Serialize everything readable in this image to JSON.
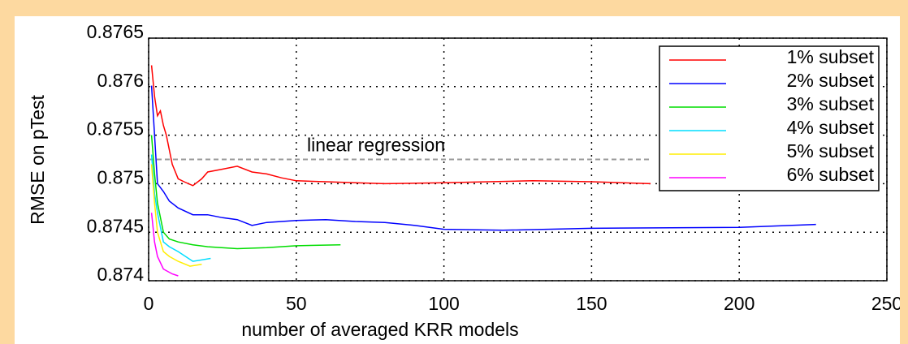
{
  "chart_data": {
    "type": "line",
    "xlabel": "number of averaged KRR models",
    "ylabel": "RMSE on pTest",
    "xlim": [
      0,
      250
    ],
    "xticks": [
      0,
      50,
      100,
      150,
      200,
      250
    ],
    "ylim": [
      0.874,
      0.8765
    ],
    "yticks": [
      0.874,
      0.8745,
      0.875,
      0.8755,
      0.876,
      0.8765
    ],
    "grid": true,
    "legend": "upper right",
    "reference_line": {
      "label": "linear regression",
      "value": 0.87525,
      "x": [
        0,
        170
      ],
      "color": "#999999"
    },
    "series": [
      {
        "name": "1% subset",
        "color": "#ff0000",
        "x": [
          1,
          2,
          3,
          4,
          5,
          6,
          8,
          10,
          12,
          15,
          18,
          20,
          25,
          30,
          35,
          40,
          45,
          50,
          60,
          70,
          80,
          100,
          130,
          150,
          170
        ],
        "values": [
          0.87622,
          0.8759,
          0.8757,
          0.87575,
          0.8756,
          0.8755,
          0.8752,
          0.87505,
          0.87502,
          0.87498,
          0.87505,
          0.87512,
          0.87515,
          0.87518,
          0.87512,
          0.8751,
          0.87506,
          0.87503,
          0.87502,
          0.87501,
          0.875,
          0.87501,
          0.87503,
          0.87502,
          0.875
        ]
      },
      {
        "name": "2% subset",
        "color": "#0000ff",
        "x": [
          1,
          2,
          3,
          5,
          7,
          10,
          15,
          20,
          25,
          30,
          35,
          40,
          50,
          60,
          70,
          80,
          90,
          100,
          120,
          150,
          200,
          226
        ],
        "values": [
          0.87601,
          0.8755,
          0.875,
          0.87492,
          0.87482,
          0.87475,
          0.87468,
          0.87468,
          0.87465,
          0.87463,
          0.87457,
          0.8746,
          0.87462,
          0.87463,
          0.87461,
          0.8746,
          0.87457,
          0.87453,
          0.87452,
          0.87454,
          0.87455,
          0.87458
        ]
      },
      {
        "name": "3% subset",
        "color": "#00dd00",
        "x": [
          1,
          2,
          3,
          5,
          7,
          10,
          15,
          20,
          30,
          40,
          50,
          65
        ],
        "values": [
          0.8755,
          0.8751,
          0.8748,
          0.8745,
          0.87443,
          0.8744,
          0.87437,
          0.87435,
          0.87433,
          0.87434,
          0.87436,
          0.87437
        ]
      },
      {
        "name": "4% subset",
        "color": "#00ddff",
        "x": [
          1,
          2,
          3,
          5,
          7,
          10,
          15,
          21
        ],
        "values": [
          0.8753,
          0.8749,
          0.8747,
          0.8744,
          0.87435,
          0.8743,
          0.8742,
          0.87423
        ]
      },
      {
        "name": "5% subset",
        "color": "#ffee00",
        "x": [
          1,
          2,
          3,
          5,
          7,
          10,
          14,
          18
        ],
        "values": [
          0.8752,
          0.8748,
          0.8745,
          0.8743,
          0.87425,
          0.8742,
          0.87415,
          0.87417
        ]
      },
      {
        "name": "6% subset",
        "color": "#ff00ff",
        "x": [
          1,
          2,
          3,
          5,
          8,
          10
        ],
        "values": [
          0.8747,
          0.8744,
          0.87425,
          0.87412,
          0.87407,
          0.87405
        ]
      }
    ]
  }
}
